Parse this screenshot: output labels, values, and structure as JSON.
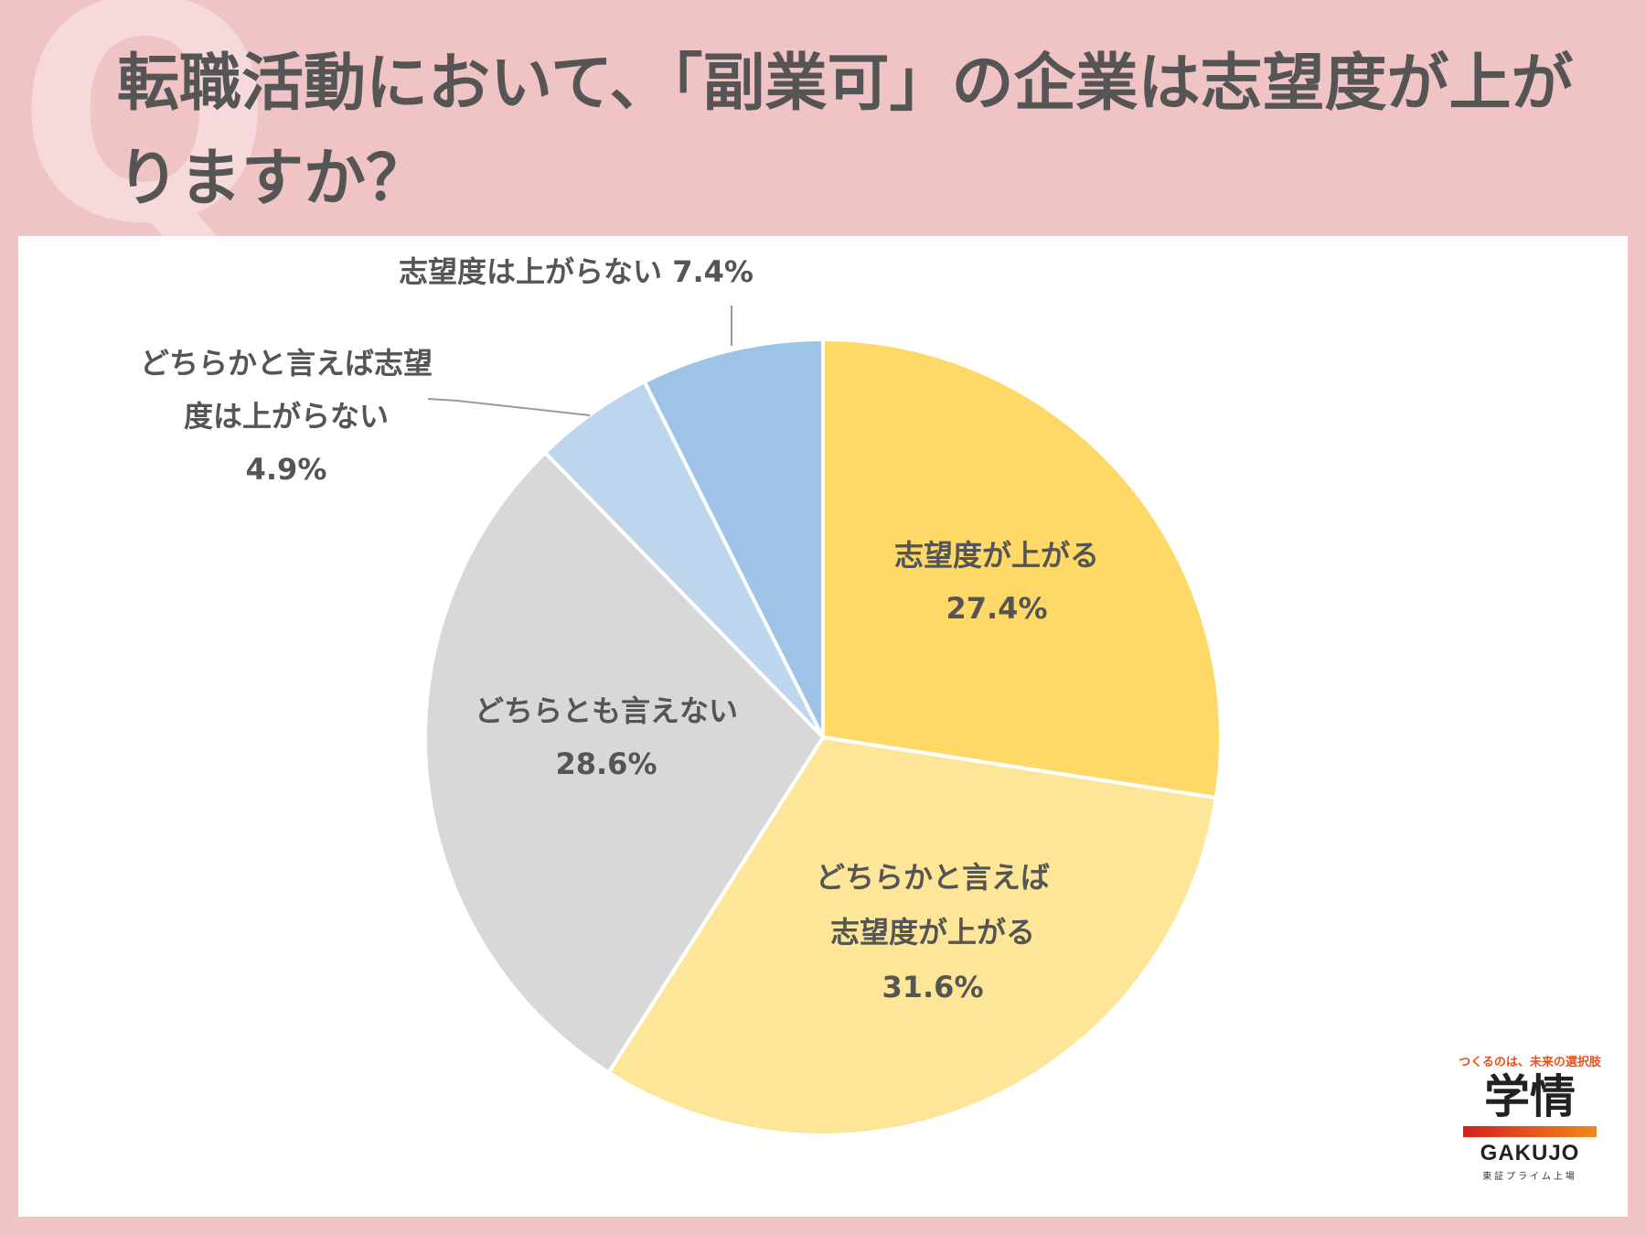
{
  "header": {
    "q_mark": "Q",
    "title": "転職活動において、「副業可」の企業は志望度が上がりますか？"
  },
  "chart_data": {
    "type": "pie",
    "start_angle_deg": 0,
    "direction": "clockwise",
    "series": [
      {
        "name": "志望度が上がる",
        "value": 27.4,
        "label_lines": [
          "志望度が上がる",
          "27.4%"
        ],
        "color": "#fed967"
      },
      {
        "name": "どちらかと言えば志望度が上がる",
        "value": 31.6,
        "label_lines": [
          "どちらかと言えば",
          "志望度が上がる",
          "31.6%"
        ],
        "color": "#fee699"
      },
      {
        "name": "どちらとも言えない",
        "value": 28.6,
        "label_lines": [
          "どちらとも言えない",
          "28.6%"
        ],
        "color": "#d8d8d8"
      },
      {
        "name": "どちらかと言えば志望度は上がらない",
        "value": 4.9,
        "label_lines": [
          "どちらかと言えば志望",
          "度は上がらない",
          "4.9%"
        ],
        "color": "#bdd6ee"
      },
      {
        "name": "志望度は上がらない",
        "value": 7.4,
        "label_lines": [
          "志望度は上がらない 7.4%"
        ],
        "color": "#9dc3e6"
      }
    ]
  },
  "logo": {
    "tagline": "つくるのは、未来の選択肢",
    "kanji": "学情",
    "english": "GAKUJO",
    "sub": "東証プライム上場"
  }
}
